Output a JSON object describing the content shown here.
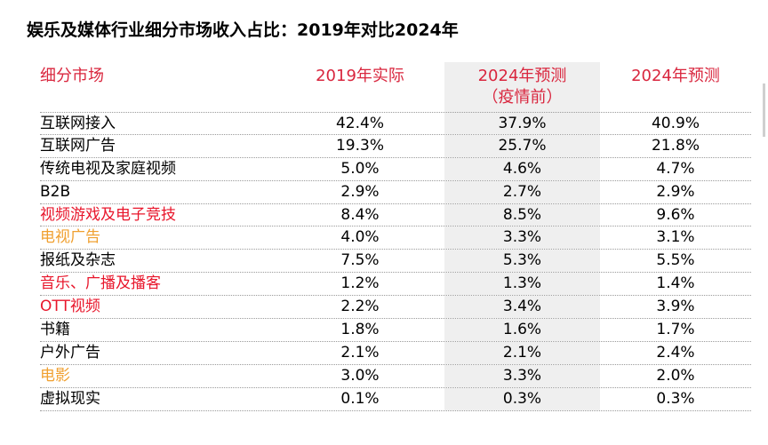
{
  "title": "娱乐及媒体行业细分市场收入占比：2019年对比2024年",
  "header": {
    "market": "细分市场",
    "col1": "2019年实际",
    "col2_line1": "2024年预测",
    "col2_line2": "（疫情前）",
    "col3": "2024年预测"
  },
  "colors": {
    "header": "#d9263e",
    "highlight_red": "#e8162b",
    "highlight_orange": "#f0a030",
    "shaded_column": "#efefef"
  },
  "rows": [
    {
      "market": "互联网接入",
      "v2019": "42.4%",
      "v2024_pre": "37.9%",
      "v2024": "40.9%",
      "color": "#000000"
    },
    {
      "market": "互联网广告",
      "v2019": "19.3%",
      "v2024_pre": "25.7%",
      "v2024": "21.8%",
      "color": "#000000"
    },
    {
      "market": "传统电视及家庭视频",
      "v2019": "5.0%",
      "v2024_pre": "4.6%",
      "v2024": "4.7%",
      "color": "#000000"
    },
    {
      "market": "B2B",
      "v2019": "2.9%",
      "v2024_pre": "2.7%",
      "v2024": "2.9%",
      "color": "#000000"
    },
    {
      "market": "视频游戏及电子竞技",
      "v2019": "8.4%",
      "v2024_pre": "8.5%",
      "v2024": "9.6%",
      "color": "#e8162b"
    },
    {
      "market": "电视广告",
      "v2019": "4.0%",
      "v2024_pre": "3.3%",
      "v2024": "3.1%",
      "color": "#f0a030"
    },
    {
      "market": "报纸及杂志",
      "v2019": "7.5%",
      "v2024_pre": "5.3%",
      "v2024": "5.5%",
      "color": "#000000"
    },
    {
      "market": "音乐、广播及播客",
      "v2019": "1.2%",
      "v2024_pre": "1.3%",
      "v2024": "1.4%",
      "color": "#e8162b"
    },
    {
      "market": "OTT视频",
      "v2019": "2.2%",
      "v2024_pre": "3.4%",
      "v2024": "3.9%",
      "color": "#e8162b"
    },
    {
      "market": "书籍",
      "v2019": "1.8%",
      "v2024_pre": "1.6%",
      "v2024": "1.7%",
      "color": "#000000"
    },
    {
      "market": "户外广告",
      "v2019": "2.1%",
      "v2024_pre": "2.1%",
      "v2024": "2.4%",
      "color": "#000000"
    },
    {
      "market": "电影",
      "v2019": "3.0%",
      "v2024_pre": "3.3%",
      "v2024": "2.0%",
      "color": "#f0a030"
    },
    {
      "market": "虚拟现实",
      "v2019": "0.1%",
      "v2024_pre": "0.3%",
      "v2024": "0.3%",
      "color": "#000000"
    }
  ]
}
